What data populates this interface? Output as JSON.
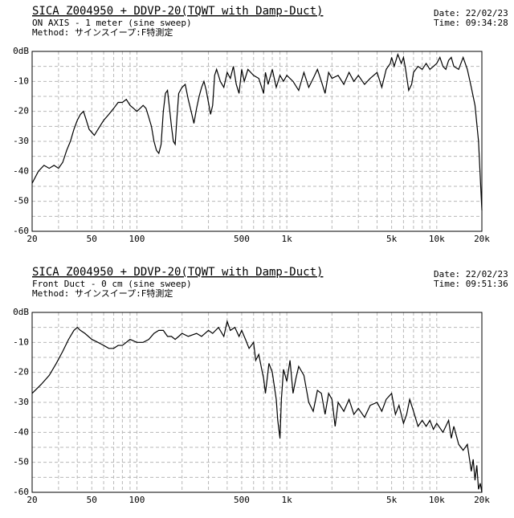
{
  "chart_data": [
    {
      "type": "line",
      "title": "SICA Z004950 + DDVP-20(TQWT with Damp-Duct)",
      "subtitle": "ON AXIS - 1 meter  (sine sweep)",
      "method": "Method: サインスイープ:F特測定",
      "date": "Date: 22/02/23",
      "time": "Time: 09:34:28",
      "log_x": true,
      "grid": true,
      "color": "#000000",
      "xlim": [
        20,
        20000
      ],
      "ylim": [
        -60,
        0
      ],
      "xticks": [
        20,
        50,
        100,
        500,
        {
          "value": 1000,
          "label": "1k"
        },
        {
          "value": 5000,
          "label": "5k"
        },
        {
          "value": 10000,
          "label": "10k"
        },
        {
          "value": 20000,
          "label": "20k"
        }
      ],
      "yticks": [
        {
          "value": 0,
          "label": "0dB"
        },
        -10,
        -20,
        -30,
        -40,
        -50,
        -60
      ],
      "xminor": [
        30,
        40,
        60,
        70,
        80,
        90,
        200,
        300,
        400,
        600,
        700,
        800,
        900,
        2000,
        3000,
        4000,
        6000,
        7000,
        8000,
        9000
      ],
      "yminor": [
        -5,
        -15,
        -25,
        -35,
        -45,
        -55
      ],
      "x": [
        20,
        22,
        24,
        26,
        28,
        30,
        32,
        34,
        36,
        38,
        40,
        42,
        44,
        46,
        48,
        50,
        52,
        55,
        60,
        65,
        70,
        75,
        80,
        85,
        90,
        95,
        100,
        105,
        110,
        115,
        120,
        125,
        130,
        135,
        140,
        145,
        150,
        155,
        160,
        165,
        170,
        175,
        180,
        185,
        190,
        200,
        210,
        220,
        230,
        240,
        250,
        260,
        270,
        280,
        290,
        300,
        310,
        320,
        330,
        340,
        350,
        360,
        380,
        400,
        420,
        440,
        460,
        480,
        500,
        520,
        550,
        600,
        650,
        700,
        720,
        750,
        800,
        850,
        900,
        950,
        1000,
        1100,
        1200,
        1300,
        1400,
        1500,
        1600,
        1700,
        1800,
        1900,
        2000,
        2200,
        2400,
        2600,
        2800,
        3000,
        3300,
        3600,
        4000,
        4300,
        4600,
        4900,
        5000,
        5200,
        5500,
        5800,
        6000,
        6200,
        6500,
        6800,
        7000,
        7500,
        8000,
        8500,
        9000,
        9500,
        10000,
        10500,
        11000,
        11500,
        12000,
        12500,
        13000,
        14000,
        15000,
        16000,
        17000,
        18000,
        19000,
        20000
      ],
      "values": [
        -44,
        -40,
        -38,
        -39,
        -38,
        -39,
        -37,
        -33,
        -30,
        -26,
        -23,
        -21,
        -20,
        -23,
        -26,
        -27,
        -28,
        -26,
        -23,
        -21,
        -19,
        -17,
        -17,
        -16,
        -18,
        -19,
        -20,
        -19,
        -18,
        -19,
        -22,
        -25,
        -30,
        -33,
        -34,
        -31,
        -20,
        -14,
        -13,
        -19,
        -25,
        -30,
        -31,
        -22,
        -14,
        -12,
        -11,
        -16,
        -20,
        -24,
        -19,
        -15,
        -12,
        -10,
        -13,
        -17,
        -21,
        -18,
        -8,
        -6,
        -8,
        -10,
        -12,
        -7,
        -9,
        -5,
        -11,
        -14,
        -6,
        -10,
        -6,
        -8,
        -9,
        -14,
        -7,
        -11,
        -6,
        -12,
        -8,
        -10,
        -8,
        -10,
        -13,
        -7,
        -12,
        -9,
        -6,
        -10,
        -14,
        -7,
        -9,
        -8,
        -11,
        -7,
        -10,
        -8,
        -11,
        -9,
        -7,
        -12,
        -6,
        -4,
        -2,
        -5,
        -1,
        -4,
        -2,
        -6,
        -13,
        -11,
        -7,
        -5,
        -6,
        -4,
        -6,
        -5,
        -4,
        -2,
        -5,
        -6,
        -3,
        -2,
        -5,
        -6,
        -2,
        -6,
        -12,
        -18,
        -30,
        -53
      ]
    },
    {
      "type": "line",
      "title": "SICA Z004950 + DDVP-20(TQWT with Damp-Duct)",
      "subtitle": "Front Duct - 0 cm  (sine sweep)",
      "method": "Method: サインスイープ:F特測定",
      "date": "Date: 22/02/23",
      "time": "Time: 09:51:36",
      "log_x": true,
      "grid": true,
      "color": "#000000",
      "xlim": [
        20,
        20000
      ],
      "ylim": [
        -60,
        0
      ],
      "xticks": [
        20,
        50,
        100,
        500,
        {
          "value": 1000,
          "label": "1k"
        },
        {
          "value": 5000,
          "label": "5k"
        },
        {
          "value": 10000,
          "label": "10k"
        },
        {
          "value": 20000,
          "label": "20k"
        }
      ],
      "yticks": [
        {
          "value": 0,
          "label": "0dB"
        },
        -10,
        -20,
        -30,
        -40,
        -50,
        -60
      ],
      "xminor": [
        30,
        40,
        60,
        70,
        80,
        90,
        200,
        300,
        400,
        600,
        700,
        800,
        900,
        2000,
        3000,
        4000,
        6000,
        7000,
        8000,
        9000
      ],
      "yminor": [
        -5,
        -15,
        -25,
        -35,
        -45,
        -55
      ],
      "x": [
        20,
        23,
        26,
        29,
        32,
        35,
        38,
        40,
        42,
        45,
        50,
        55,
        60,
        65,
        70,
        75,
        80,
        90,
        100,
        110,
        120,
        130,
        140,
        150,
        160,
        170,
        180,
        190,
        200,
        220,
        250,
        270,
        300,
        320,
        350,
        380,
        400,
        420,
        450,
        480,
        500,
        530,
        560,
        600,
        620,
        650,
        680,
        700,
        720,
        740,
        760,
        800,
        850,
        870,
        900,
        920,
        950,
        1000,
        1050,
        1100,
        1150,
        1200,
        1300,
        1400,
        1500,
        1600,
        1700,
        1800,
        1900,
        2000,
        2100,
        2200,
        2400,
        2600,
        2800,
        3000,
        3300,
        3600,
        4000,
        4300,
        4600,
        5000,
        5300,
        5600,
        6000,
        6300,
        6600,
        7000,
        7500,
        8000,
        8500,
        9000,
        9500,
        10000,
        11000,
        12000,
        12500,
        13000,
        14000,
        15000,
        16000,
        17000,
        17500,
        18000,
        18500,
        19000,
        19500,
        20000
      ],
      "values": [
        -27,
        -24,
        -21,
        -17,
        -13,
        -9,
        -6,
        -5,
        -6,
        -7,
        -9,
        -10,
        -11,
        -12,
        -12,
        -11,
        -11,
        -9,
        -10,
        -10,
        -9,
        -7,
        -6,
        -6,
        -8,
        -8,
        -9,
        -8,
        -7,
        -8,
        -7,
        -8,
        -6,
        -7,
        -5,
        -8,
        -3,
        -6,
        -5,
        -8,
        -6,
        -9,
        -12,
        -10,
        -16,
        -14,
        -19,
        -22,
        -27,
        -22,
        -17,
        -20,
        -29,
        -36,
        -42,
        -29,
        -19,
        -23,
        -16,
        -27,
        -22,
        -18,
        -21,
        -30,
        -33,
        -26,
        -27,
        -34,
        -27,
        -29,
        -38,
        -30,
        -33,
        -29,
        -34,
        -32,
        -35,
        -31,
        -30,
        -33,
        -29,
        -27,
        -34,
        -31,
        -37,
        -34,
        -29,
        -33,
        -38,
        -36,
        -38,
        -36,
        -39,
        -37,
        -40,
        -36,
        -42,
        -38,
        -44,
        -46,
        -44,
        -53,
        -49,
        -56,
        -51,
        -59,
        -57,
        -60
      ]
    }
  ]
}
